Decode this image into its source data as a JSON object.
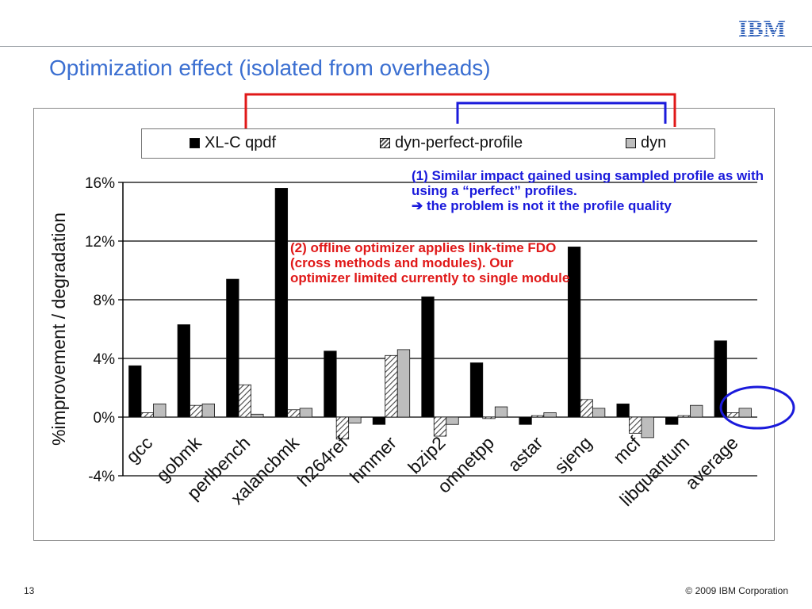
{
  "header": {
    "logo_text": "IBM"
  },
  "slide": {
    "title": "Optimization effect (isolated from overheads)"
  },
  "chart_data": {
    "type": "bar",
    "ylabel": "%improvement / degradation",
    "ylim": [
      -4,
      16
    ],
    "yticks": [
      -4,
      0,
      4,
      8,
      12,
      16
    ],
    "ytick_labels": [
      "-4%",
      "0%",
      "4%",
      "8%",
      "12%",
      "16%"
    ],
    "grid": "horizontal",
    "legend_position": "top",
    "categories": [
      "gcc",
      "gobmk",
      "perlbench",
      "xalancbmk",
      "h264ref",
      "hmmer",
      "bzip2",
      "omnetpp",
      "astar",
      "sjeng",
      "mcf",
      "libquantum",
      "average"
    ],
    "series": [
      {
        "name": "XL-C qpdf",
        "fill": "solid-black",
        "values": [
          3.5,
          6.3,
          9.4,
          15.6,
          4.5,
          -0.5,
          8.2,
          3.7,
          -0.5,
          11.6,
          0.9,
          -0.5,
          5.2
        ]
      },
      {
        "name": "dyn-perfect-profile",
        "fill": "hatched",
        "values": [
          0.3,
          0.8,
          2.2,
          0.5,
          -1.5,
          4.2,
          -1.3,
          -0.1,
          0.1,
          1.2,
          -1.1,
          0.1,
          0.3
        ]
      },
      {
        "name": "dyn",
        "fill": "light-gray",
        "values": [
          0.9,
          0.9,
          0.2,
          0.6,
          -0.4,
          4.6,
          -0.5,
          0.7,
          0.3,
          0.6,
          -1.4,
          0.8,
          0.6
        ]
      }
    ]
  },
  "annotations": {
    "note1": "(1) Similar impact gained using sampled profile as with using a “perfect” profiles.",
    "note1_line2": "the problem is not it the profile quality",
    "note1_arrow": "➔",
    "note2": "(2) offline optimizer applies link-time FDO (cross methods and modules). Our optimizer limited currently to single module"
  },
  "colors": {
    "title": "#3b6fd1",
    "note1": "#1a1adb",
    "note2": "#e01818",
    "bracket_red": "#e01818",
    "bracket_blue": "#1a1adb",
    "highlight_circle": "#1a1adb",
    "logo": "#2e5fb8"
  },
  "footer": {
    "page_number": "13",
    "copyright": "© 2009 IBM Corporation"
  }
}
